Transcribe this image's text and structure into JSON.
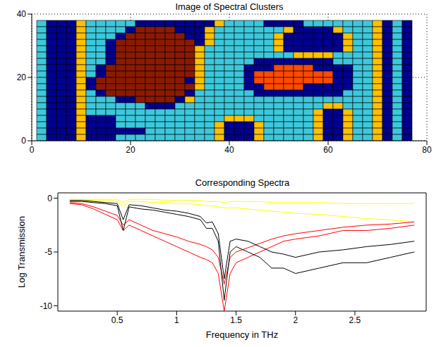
{
  "chart_data": [
    {
      "type": "heatmap",
      "title": "Image of Spectral Clusters",
      "x": [
        2,
        4,
        6,
        8,
        10,
        12,
        14,
        16,
        18,
        20,
        22,
        24,
        26,
        28,
        30,
        32,
        34,
        36,
        38,
        40,
        42,
        44,
        46,
        48,
        50,
        52,
        54,
        56,
        58,
        60,
        62,
        64,
        66,
        68,
        70,
        72,
        74,
        76
      ],
      "y": [
        37,
        35,
        33,
        31,
        29,
        27,
        25,
        23,
        21,
        19,
        17,
        15,
        13,
        11,
        9,
        7,
        5,
        3,
        1
      ],
      "cells": [
        [
          0,
          1,
          1,
          1,
          4,
          0,
          0,
          0,
          0,
          0,
          1,
          1,
          1,
          1,
          1,
          1,
          1,
          1,
          4,
          0,
          0,
          0,
          0,
          1,
          1,
          1,
          1,
          0,
          0,
          0,
          0,
          0,
          0,
          0,
          4,
          1,
          0,
          1
        ],
        [
          0,
          1,
          1,
          1,
          4,
          0,
          0,
          0,
          0,
          1,
          2,
          2,
          2,
          2,
          1,
          1,
          1,
          4,
          0,
          0,
          0,
          0,
          0,
          0,
          0,
          4,
          1,
          1,
          1,
          1,
          4,
          0,
          0,
          0,
          4,
          1,
          0,
          1
        ],
        [
          0,
          1,
          1,
          1,
          4,
          0,
          0,
          0,
          1,
          2,
          2,
          2,
          2,
          2,
          2,
          1,
          1,
          4,
          0,
          0,
          0,
          0,
          0,
          0,
          4,
          1,
          1,
          1,
          1,
          1,
          1,
          4,
          0,
          0,
          4,
          1,
          0,
          1
        ],
        [
          0,
          1,
          1,
          1,
          4,
          0,
          0,
          1,
          2,
          2,
          2,
          2,
          2,
          2,
          2,
          2,
          1,
          4,
          0,
          0,
          0,
          0,
          0,
          0,
          4,
          1,
          1,
          1,
          1,
          1,
          1,
          4,
          0,
          0,
          4,
          1,
          0,
          1
        ],
        [
          0,
          1,
          1,
          1,
          4,
          0,
          0,
          1,
          2,
          2,
          2,
          2,
          2,
          2,
          2,
          2,
          4,
          0,
          0,
          0,
          0,
          0,
          0,
          0,
          4,
          1,
          1,
          1,
          1,
          1,
          1,
          4,
          0,
          0,
          4,
          1,
          0,
          1
        ],
        [
          0,
          1,
          1,
          1,
          4,
          0,
          0,
          1,
          2,
          2,
          2,
          2,
          2,
          2,
          2,
          2,
          4,
          0,
          0,
          0,
          0,
          0,
          0,
          0,
          0,
          0,
          4,
          4,
          4,
          4,
          0,
          0,
          0,
          0,
          4,
          1,
          0,
          1
        ],
        [
          0,
          1,
          1,
          1,
          4,
          0,
          0,
          1,
          2,
          2,
          2,
          2,
          2,
          2,
          2,
          2,
          4,
          0,
          0,
          0,
          0,
          0,
          1,
          1,
          1,
          1,
          1,
          1,
          1,
          1,
          0,
          0,
          0,
          0,
          4,
          1,
          0,
          1
        ],
        [
          0,
          1,
          1,
          1,
          4,
          0,
          1,
          2,
          2,
          2,
          2,
          2,
          2,
          2,
          2,
          2,
          4,
          0,
          0,
          0,
          0,
          1,
          1,
          1,
          3,
          3,
          3,
          3,
          1,
          1,
          1,
          1,
          0,
          0,
          4,
          1,
          0,
          1
        ],
        [
          0,
          1,
          1,
          1,
          4,
          0,
          1,
          2,
          2,
          2,
          2,
          2,
          2,
          2,
          2,
          2,
          4,
          0,
          0,
          0,
          0,
          1,
          3,
          3,
          3,
          3,
          3,
          3,
          3,
          3,
          1,
          1,
          0,
          0,
          4,
          1,
          0,
          1
        ],
        [
          0,
          1,
          1,
          1,
          4,
          1,
          2,
          2,
          2,
          2,
          2,
          2,
          2,
          2,
          2,
          1,
          4,
          0,
          0,
          0,
          0,
          1,
          3,
          3,
          3,
          3,
          3,
          3,
          3,
          3,
          1,
          1,
          0,
          0,
          4,
          1,
          0,
          1
        ],
        [
          0,
          1,
          1,
          1,
          4,
          1,
          2,
          2,
          2,
          2,
          2,
          2,
          2,
          2,
          2,
          2,
          4,
          0,
          0,
          0,
          0,
          1,
          1,
          3,
          3,
          3,
          3,
          1,
          1,
          1,
          1,
          1,
          0,
          0,
          4,
          1,
          0,
          1
        ],
        [
          0,
          1,
          1,
          1,
          4,
          0,
          1,
          2,
          2,
          2,
          2,
          2,
          2,
          2,
          2,
          1,
          0,
          0,
          0,
          0,
          0,
          0,
          1,
          1,
          1,
          1,
          1,
          1,
          1,
          1,
          1,
          0,
          0,
          0,
          4,
          1,
          0,
          1
        ],
        [
          0,
          1,
          1,
          1,
          4,
          0,
          0,
          0,
          1,
          1,
          2,
          2,
          2,
          2,
          1,
          4,
          0,
          0,
          0,
          0,
          0,
          0,
          0,
          0,
          0,
          0,
          0,
          0,
          0,
          0,
          0,
          0,
          0,
          0,
          4,
          1,
          0,
          1
        ],
        [
          0,
          1,
          1,
          1,
          4,
          0,
          0,
          0,
          0,
          0,
          0,
          1,
          1,
          1,
          0,
          0,
          0,
          0,
          0,
          0,
          0,
          0,
          0,
          0,
          0,
          0,
          0,
          0,
          0,
          4,
          4,
          0,
          0,
          0,
          4,
          1,
          0,
          1
        ],
        [
          0,
          1,
          1,
          1,
          4,
          0,
          0,
          0,
          0,
          0,
          0,
          0,
          0,
          0,
          0,
          0,
          0,
          0,
          0,
          0,
          0,
          0,
          0,
          0,
          0,
          0,
          0,
          0,
          4,
          1,
          1,
          4,
          0,
          0,
          4,
          1,
          0,
          1
        ],
        [
          0,
          1,
          1,
          1,
          4,
          1,
          1,
          1,
          0,
          0,
          0,
          0,
          0,
          0,
          0,
          0,
          0,
          0,
          0,
          4,
          4,
          4,
          0,
          0,
          0,
          0,
          0,
          0,
          4,
          1,
          1,
          4,
          0,
          0,
          4,
          1,
          0,
          1
        ],
        [
          0,
          1,
          1,
          1,
          4,
          1,
          1,
          1,
          0,
          0,
          0,
          0,
          0,
          0,
          0,
          0,
          0,
          0,
          4,
          1,
          1,
          1,
          4,
          0,
          0,
          0,
          0,
          0,
          4,
          1,
          1,
          4,
          0,
          0,
          4,
          1,
          0,
          1
        ],
        [
          0,
          1,
          1,
          1,
          4,
          1,
          1,
          1,
          1,
          1,
          1,
          0,
          0,
          0,
          0,
          0,
          0,
          0,
          4,
          1,
          1,
          1,
          4,
          0,
          0,
          0,
          0,
          0,
          4,
          1,
          1,
          4,
          0,
          0,
          4,
          1,
          0,
          1
        ],
        [
          0,
          1,
          1,
          1,
          4,
          1,
          1,
          1,
          0,
          0,
          0,
          0,
          0,
          0,
          0,
          0,
          0,
          0,
          4,
          1,
          1,
          1,
          4,
          0,
          0,
          0,
          0,
          0,
          4,
          1,
          1,
          4,
          0,
          0,
          4,
          1,
          0,
          1
        ]
      ],
      "colors": [
        "#3cc8dc",
        "#000090",
        "#8c1a00",
        "#ff4a00",
        "#ffc000"
      ],
      "xlim": [
        0,
        80
      ],
      "xticks": [
        0,
        20,
        40,
        60,
        80
      ],
      "ylim": [
        0,
        40
      ],
      "yticks": [
        0,
        20,
        40
      ],
      "grid": true
    },
    {
      "type": "line",
      "title": "Corresponding Spectra",
      "x_label": "Frequency in THz",
      "y_label": "Log Transmission",
      "x": [
        0.1,
        0.2,
        0.3,
        0.4,
        0.5,
        0.55,
        0.6,
        0.7,
        0.8,
        0.9,
        1,
        1.1,
        1.2,
        1.25,
        1.3,
        1.35,
        1.4,
        1.45,
        1.5,
        1.6,
        1.7,
        1.8,
        1.9,
        2,
        2.2,
        2.4,
        2.6,
        2.8,
        3
      ],
      "series": [
        {
          "color": "#ffff00",
          "values": [
            -0.3,
            -0.2,
            -0.2,
            -0.2,
            -0.3,
            -0.8,
            -0.3,
            -0.3,
            -0.4,
            -0.4,
            -0.5,
            -0.5,
            -0.6,
            -0.7,
            -0.7,
            -0.8,
            -0.9,
            -0.9,
            -0.9,
            -1.0,
            -1.1,
            -1.2,
            -1.3,
            -1.4,
            -1.5,
            -1.7,
            -1.9,
            -2.0,
            -2.2
          ]
        },
        {
          "color": "#ffff00",
          "values": [
            -0.1,
            -0.1,
            -0.1,
            -0.1,
            -0.1,
            -0.4,
            -0.1,
            -0.1,
            -0.1,
            -0.2,
            -0.2,
            -0.2,
            -0.2,
            -0.3,
            -0.3,
            -0.3,
            -0.4,
            -0.3,
            -0.3,
            -0.3,
            -0.3,
            -0.4,
            -0.4,
            -0.4,
            -0.4,
            -0.5,
            -0.5,
            -0.5,
            -0.5
          ]
        },
        {
          "color": "#ff0000",
          "values": [
            -0.5,
            -0.6,
            -1.0,
            -1.5,
            -2.0,
            -3.0,
            -2.5,
            -3.0,
            -3.5,
            -4.0,
            -4.5,
            -5.0,
            -5.5,
            -5.7,
            -6.0,
            -7.0,
            -10.5,
            -7.0,
            -6.0,
            -5.5,
            -5.0,
            -4.5,
            -4.0,
            -3.8,
            -3.5,
            -3.0,
            -3.0,
            -2.8,
            -2.5
          ]
        },
        {
          "color": "#ff0000",
          "values": [
            -0.4,
            -0.5,
            -0.8,
            -1.2,
            -1.6,
            -2.5,
            -2.0,
            -2.5,
            -3.0,
            -3.3,
            -3.6,
            -4.0,
            -4.3,
            -4.5,
            -4.8,
            -5.5,
            -8.0,
            -5.5,
            -5.0,
            -4.6,
            -4.2,
            -3.8,
            -3.5,
            -3.3,
            -3.0,
            -2.7,
            -2.5,
            -2.4,
            -2.2
          ]
        },
        {
          "color": "#000000",
          "values": [
            -0.3,
            -0.3,
            -0.4,
            -0.5,
            -0.7,
            -3.0,
            -0.8,
            -1.0,
            -1.1,
            -1.3,
            -1.5,
            -1.7,
            -2.0,
            -2.8,
            -2.8,
            -4.0,
            -9.5,
            -5.0,
            -4.5,
            -5.0,
            -5.5,
            -6.5,
            -6.5,
            -7.0,
            -6.5,
            -6.0,
            -6.0,
            -5.5,
            -5.0
          ]
        },
        {
          "color": "#000000",
          "values": [
            -0.2,
            -0.2,
            -0.3,
            -0.4,
            -0.5,
            -2.0,
            -0.6,
            -0.7,
            -0.9,
            -1.1,
            -1.2,
            -1.4,
            -1.7,
            -2.3,
            -2.2,
            -3.3,
            -7.5,
            -4.0,
            -3.8,
            -4.0,
            -4.5,
            -5.0,
            -5.2,
            -5.5,
            -5.0,
            -4.8,
            -4.5,
            -4.3,
            -4.0
          ]
        }
      ],
      "xlim": [
        0,
        3.1
      ],
      "xticks": [
        0.5,
        1,
        1.5,
        2,
        2.5
      ],
      "ylim": [
        -10.5,
        0.5
      ],
      "yticks": [
        -10,
        -5,
        0
      ],
      "grid": false
    }
  ]
}
